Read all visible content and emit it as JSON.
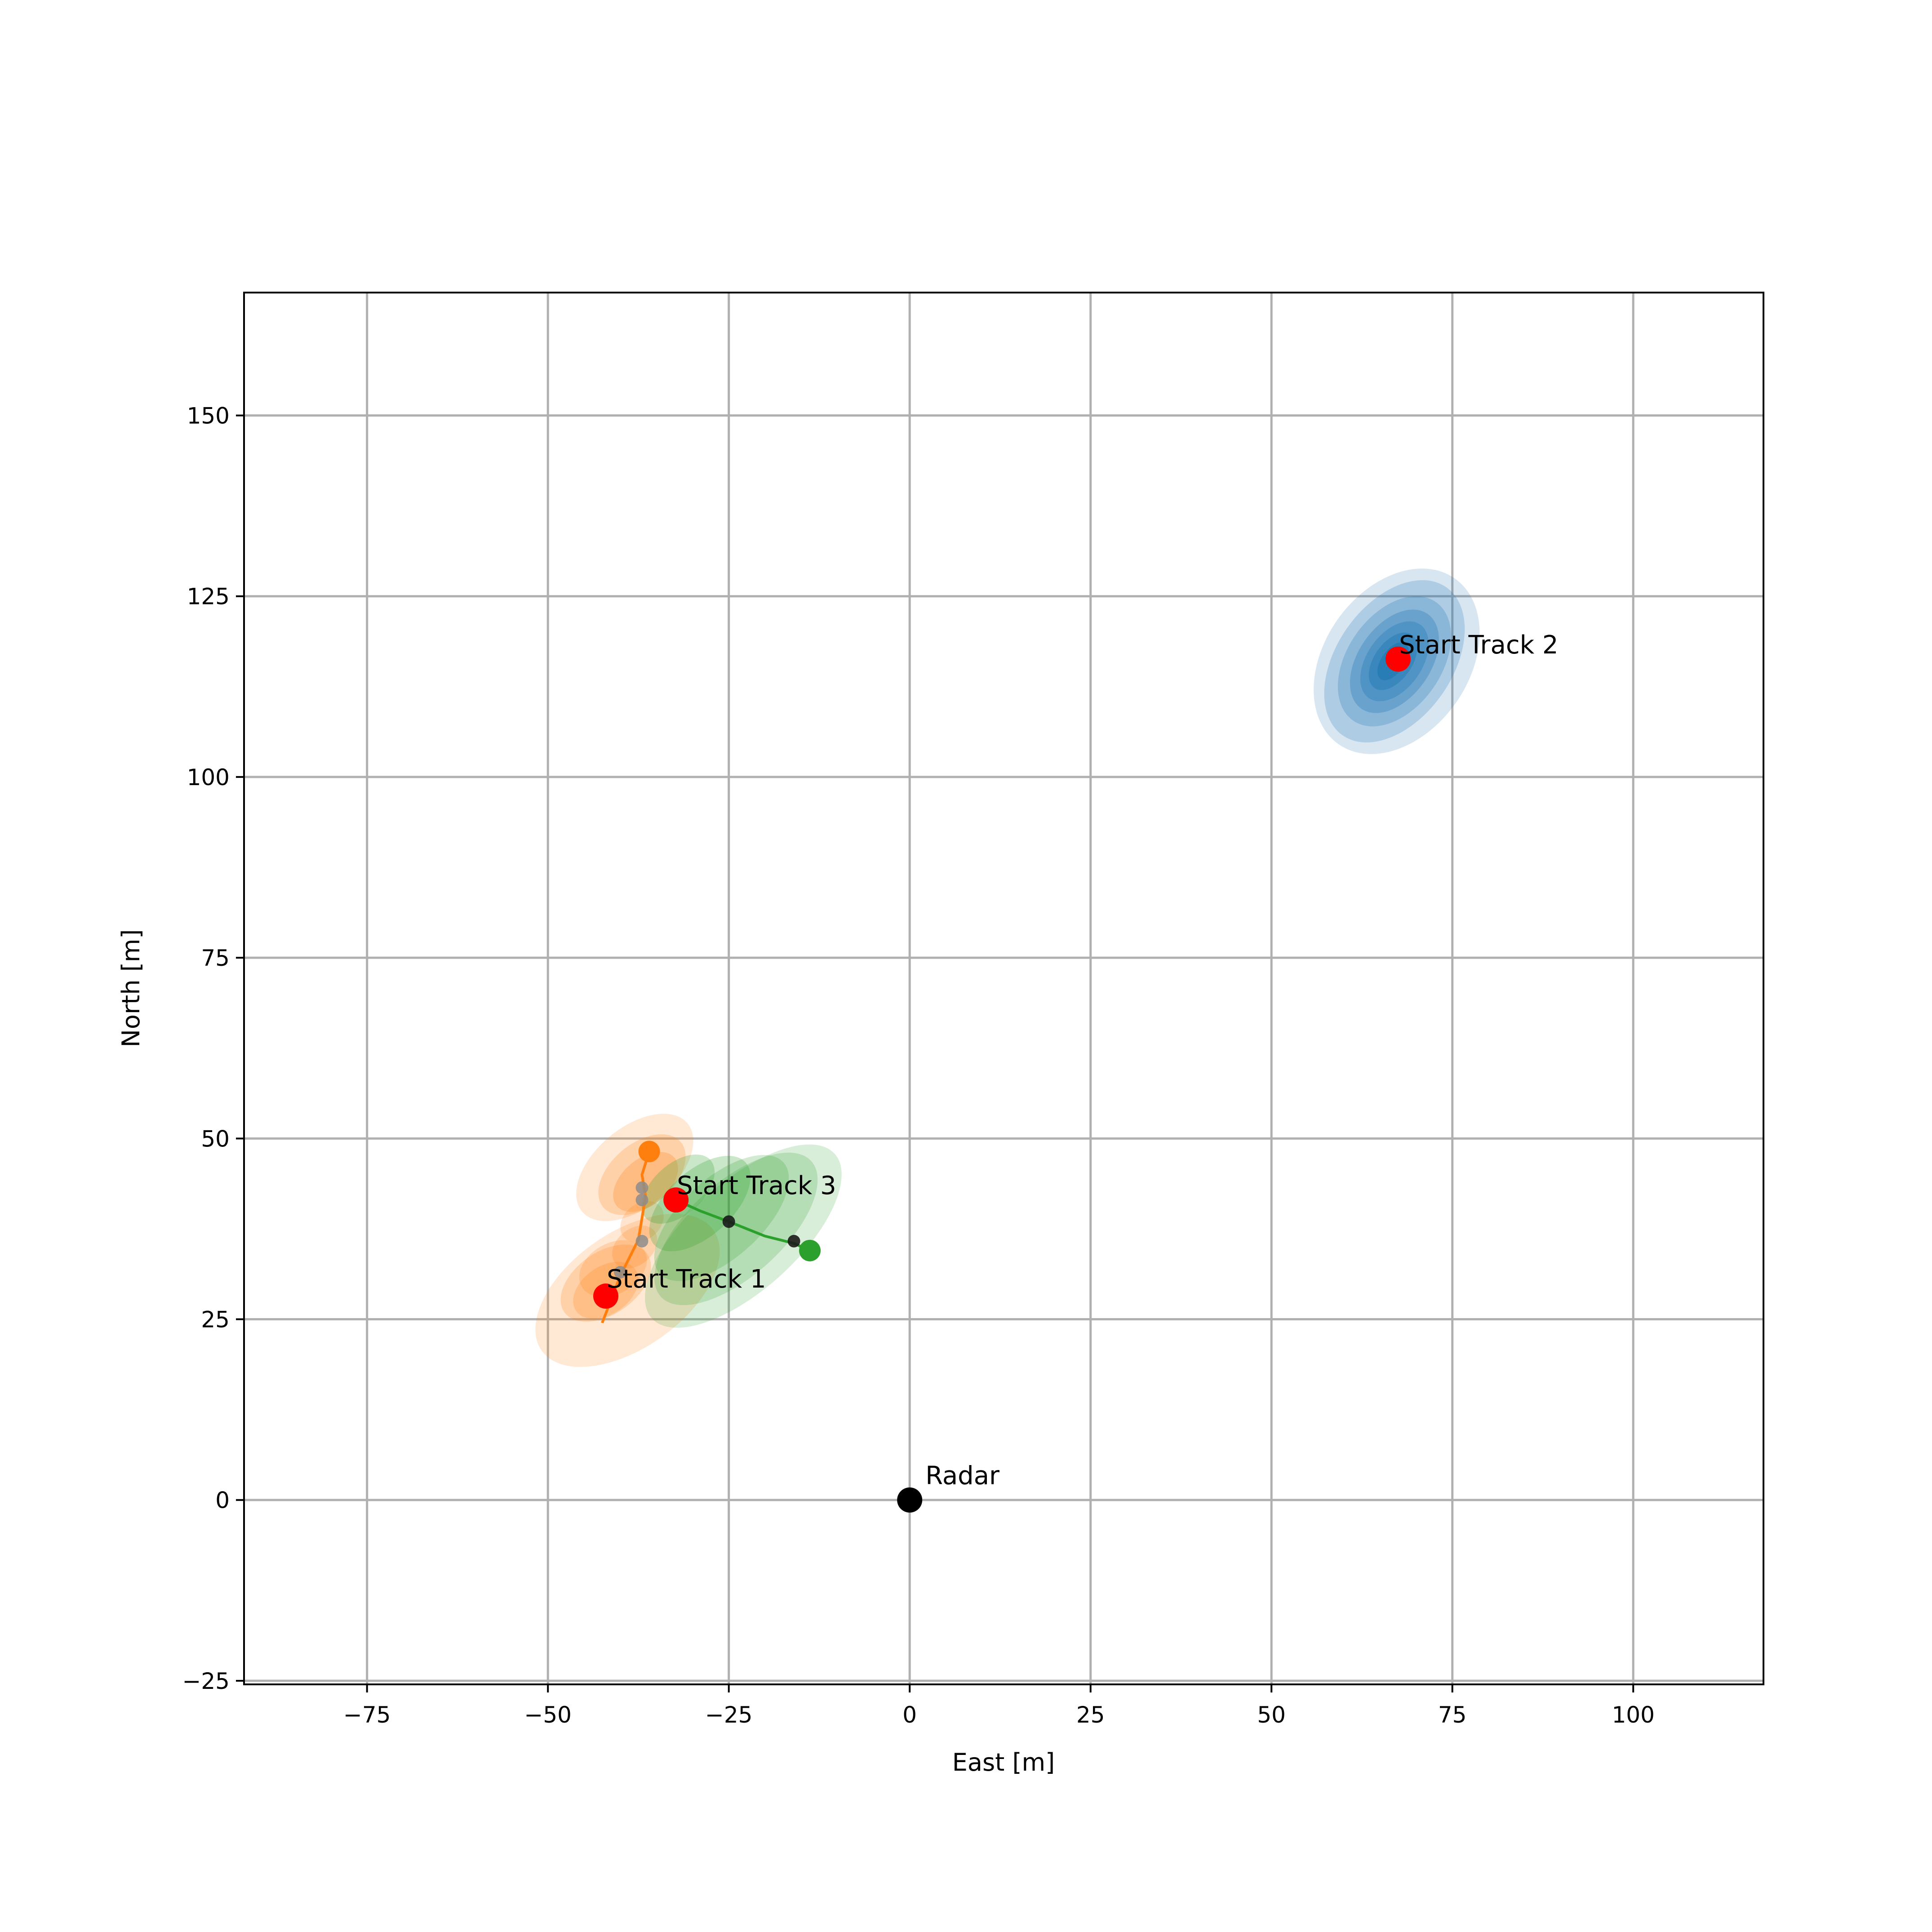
{
  "chart_data": {
    "type": "scatter",
    "title": "",
    "xlabel": "East [m]",
    "ylabel": "North [m]",
    "xlim": [
      -92,
      118
    ],
    "ylim": [
      -25.5,
      167
    ],
    "xticks": [
      -75,
      -50,
      -25,
      0,
      25,
      50,
      75,
      100
    ],
    "yticks": [
      -25,
      0,
      25,
      50,
      75,
      100,
      125,
      150
    ],
    "xtick_labels": [
      "−75",
      "−50",
      "−25",
      "0",
      "25",
      "50",
      "75",
      "100"
    ],
    "ytick_labels": [
      "−25",
      "0",
      "25",
      "50",
      "75",
      "100",
      "125",
      "150"
    ],
    "grid": true,
    "legend": "none",
    "colors": {
      "track1": "#ff7f0e",
      "track2": "#1f77b4",
      "track3": "#2ca02c",
      "start_marker": "#ff0000",
      "radar": "#000000",
      "grid": "#b0b0b0"
    },
    "radar": {
      "x": 0,
      "y": 0,
      "label": "Radar"
    },
    "tracks": [
      {
        "id": "track1",
        "label": "Start Track 1",
        "start": {
          "x": -42,
          "y": 28.2
        },
        "path": [
          {
            "x": -42.5,
            "y": 24.5
          },
          {
            "x": -40,
            "y": 31
          },
          {
            "x": -37.5,
            "y": 36
          },
          {
            "x": -36.5,
            "y": 42
          },
          {
            "x": -37,
            "y": 45
          },
          {
            "x": -36,
            "y": 48.2
          }
        ],
        "end": {
          "x": -36,
          "y": 48.2
        },
        "measurements": [
          {
            "x": -37,
            "y": 35.8
          },
          {
            "x": -37,
            "y": 41.5
          },
          {
            "x": -37,
            "y": 43.2
          },
          {
            "x": -40,
            "y": 31.5
          }
        ],
        "uncertainty": [
          {
            "x": -39,
            "y": 29,
            "sx": 14.5,
            "sy": 8,
            "angle": -35,
            "opacity": 0.18
          },
          {
            "x": -42,
            "y": 30,
            "sx": 7,
            "sy": 4.3,
            "angle": -35,
            "opacity": 0.22
          },
          {
            "x": -42,
            "y": 29,
            "sx": 5,
            "sy": 3.3,
            "angle": -35,
            "opacity": 0.22
          },
          {
            "x": -41,
            "y": 32,
            "sx": 5,
            "sy": 3.5,
            "angle": -30,
            "opacity": 0.2
          },
          {
            "x": -38,
            "y": 35,
            "sx": 3.5,
            "sy": 2.5,
            "angle": -40,
            "opacity": 0.2
          },
          {
            "x": -37,
            "y": 38.5,
            "sx": 3.3,
            "sy": 2.5,
            "angle": -40,
            "opacity": 0.2
          },
          {
            "x": -38,
            "y": 46,
            "sx": 9.5,
            "sy": 5.5,
            "angle": -40,
            "opacity": 0.18
          },
          {
            "x": -37,
            "y": 45,
            "sx": 7,
            "sy": 4.3,
            "angle": -40,
            "opacity": 0.22
          },
          {
            "x": -36.5,
            "y": 44,
            "sx": 5.2,
            "sy": 3.2,
            "angle": -40,
            "opacity": 0.25
          }
        ]
      },
      {
        "id": "track2",
        "label": "Start Track 2",
        "start": {
          "x": 67.5,
          "y": 116.3
        },
        "path": [],
        "measurements": [
          {
            "x": 67,
            "y": 116.8
          }
        ],
        "uncertainty": [
          {
            "x": 67.3,
            "y": 116,
            "sx": 10,
            "sy": 14,
            "angle": 35,
            "opacity": 0.18
          },
          {
            "x": 67,
            "y": 116,
            "sx": 8,
            "sy": 12.5,
            "angle": 35,
            "opacity": 0.22
          },
          {
            "x": 67,
            "y": 116,
            "sx": 6.5,
            "sy": 10,
            "angle": 35,
            "opacity": 0.25
          },
          {
            "x": 67,
            "y": 116,
            "sx": 5,
            "sy": 8,
            "angle": 35,
            "opacity": 0.3
          },
          {
            "x": 67,
            "y": 116,
            "sx": 3.8,
            "sy": 6.2,
            "angle": 35,
            "opacity": 0.35
          },
          {
            "x": 66.8,
            "y": 116,
            "sx": 2.6,
            "sy": 4.5,
            "angle": 35,
            "opacity": 0.45
          },
          {
            "x": 66.8,
            "y": 116,
            "sx": 1.6,
            "sy": 3,
            "angle": 35,
            "opacity": 0.6
          }
        ]
      },
      {
        "id": "track3",
        "label": "Start Track 3",
        "start": {
          "x": -32.3,
          "y": 41.5
        },
        "path": [
          {
            "x": -32.3,
            "y": 41.5
          },
          {
            "x": -29,
            "y": 40
          },
          {
            "x": -25,
            "y": 38.5
          },
          {
            "x": -20,
            "y": 36.5
          },
          {
            "x": -16,
            "y": 35.5
          },
          {
            "x": -13.8,
            "y": 34.5
          }
        ],
        "end": {
          "x": -13.8,
          "y": 34.5
        },
        "measurements": [
          {
            "x": -25,
            "y": 38.5
          },
          {
            "x": -16,
            "y": 35.8
          }
        ],
        "uncertainty": [
          {
            "x": -23,
            "y": 36.5,
            "sx": 17,
            "sy": 7.5,
            "angle": -42,
            "opacity": 0.18
          },
          {
            "x": -24,
            "y": 37.5,
            "sx": 14,
            "sy": 6.5,
            "angle": -42,
            "opacity": 0.2
          },
          {
            "x": -26,
            "y": 39,
            "sx": 11.5,
            "sy": 5.5,
            "angle": -42,
            "opacity": 0.22
          },
          {
            "x": -29,
            "y": 41,
            "sx": 8.5,
            "sy": 4.5,
            "angle": -42,
            "opacity": 0.25
          },
          {
            "x": -32,
            "y": 43,
            "sx": 6,
            "sy": 3.5,
            "angle": -42,
            "opacity": 0.25
          }
        ]
      }
    ]
  }
}
